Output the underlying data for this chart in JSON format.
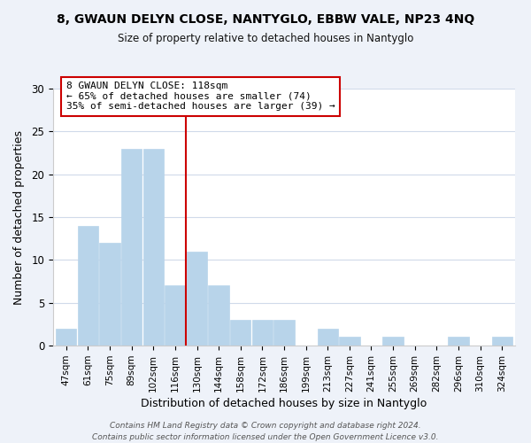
{
  "title": "8, GWAUN DELYN CLOSE, NANTYGLO, EBBW VALE, NP23 4NQ",
  "subtitle": "Size of property relative to detached houses in Nantyglo",
  "xlabel": "Distribution of detached houses by size in Nantyglo",
  "ylabel": "Number of detached properties",
  "bar_labels": [
    "47sqm",
    "61sqm",
    "75sqm",
    "89sqm",
    "102sqm",
    "116sqm",
    "130sqm",
    "144sqm",
    "158sqm",
    "172sqm",
    "186sqm",
    "199sqm",
    "213sqm",
    "227sqm",
    "241sqm",
    "255sqm",
    "269sqm",
    "282sqm",
    "296sqm",
    "310sqm",
    "324sqm"
  ],
  "bar_values": [
    2,
    14,
    12,
    23,
    23,
    7,
    11,
    7,
    3,
    3,
    3,
    0,
    2,
    1,
    0,
    1,
    0,
    0,
    1,
    0,
    1
  ],
  "bar_color": "#b8d4ea",
  "bar_edge_color": "#b8d4ea",
  "vline_x": 5.5,
  "vline_color": "#cc0000",
  "annotation_title": "8 GWAUN DELYN CLOSE: 118sqm",
  "annotation_line1": "← 65% of detached houses are smaller (74)",
  "annotation_line2": "35% of semi-detached houses are larger (39) →",
  "annotation_box_color": "#ffffff",
  "annotation_box_edge": "#cc0000",
  "ylim": [
    0,
    30
  ],
  "yticks": [
    0,
    5,
    10,
    15,
    20,
    25,
    30
  ],
  "grid_color": "#d0daea",
  "footnote1": "Contains HM Land Registry data © Crown copyright and database right 2024.",
  "footnote2": "Contains public sector information licensed under the Open Government Licence v3.0.",
  "bg_color": "#eef2f9",
  "plot_bg_color": "#ffffff"
}
